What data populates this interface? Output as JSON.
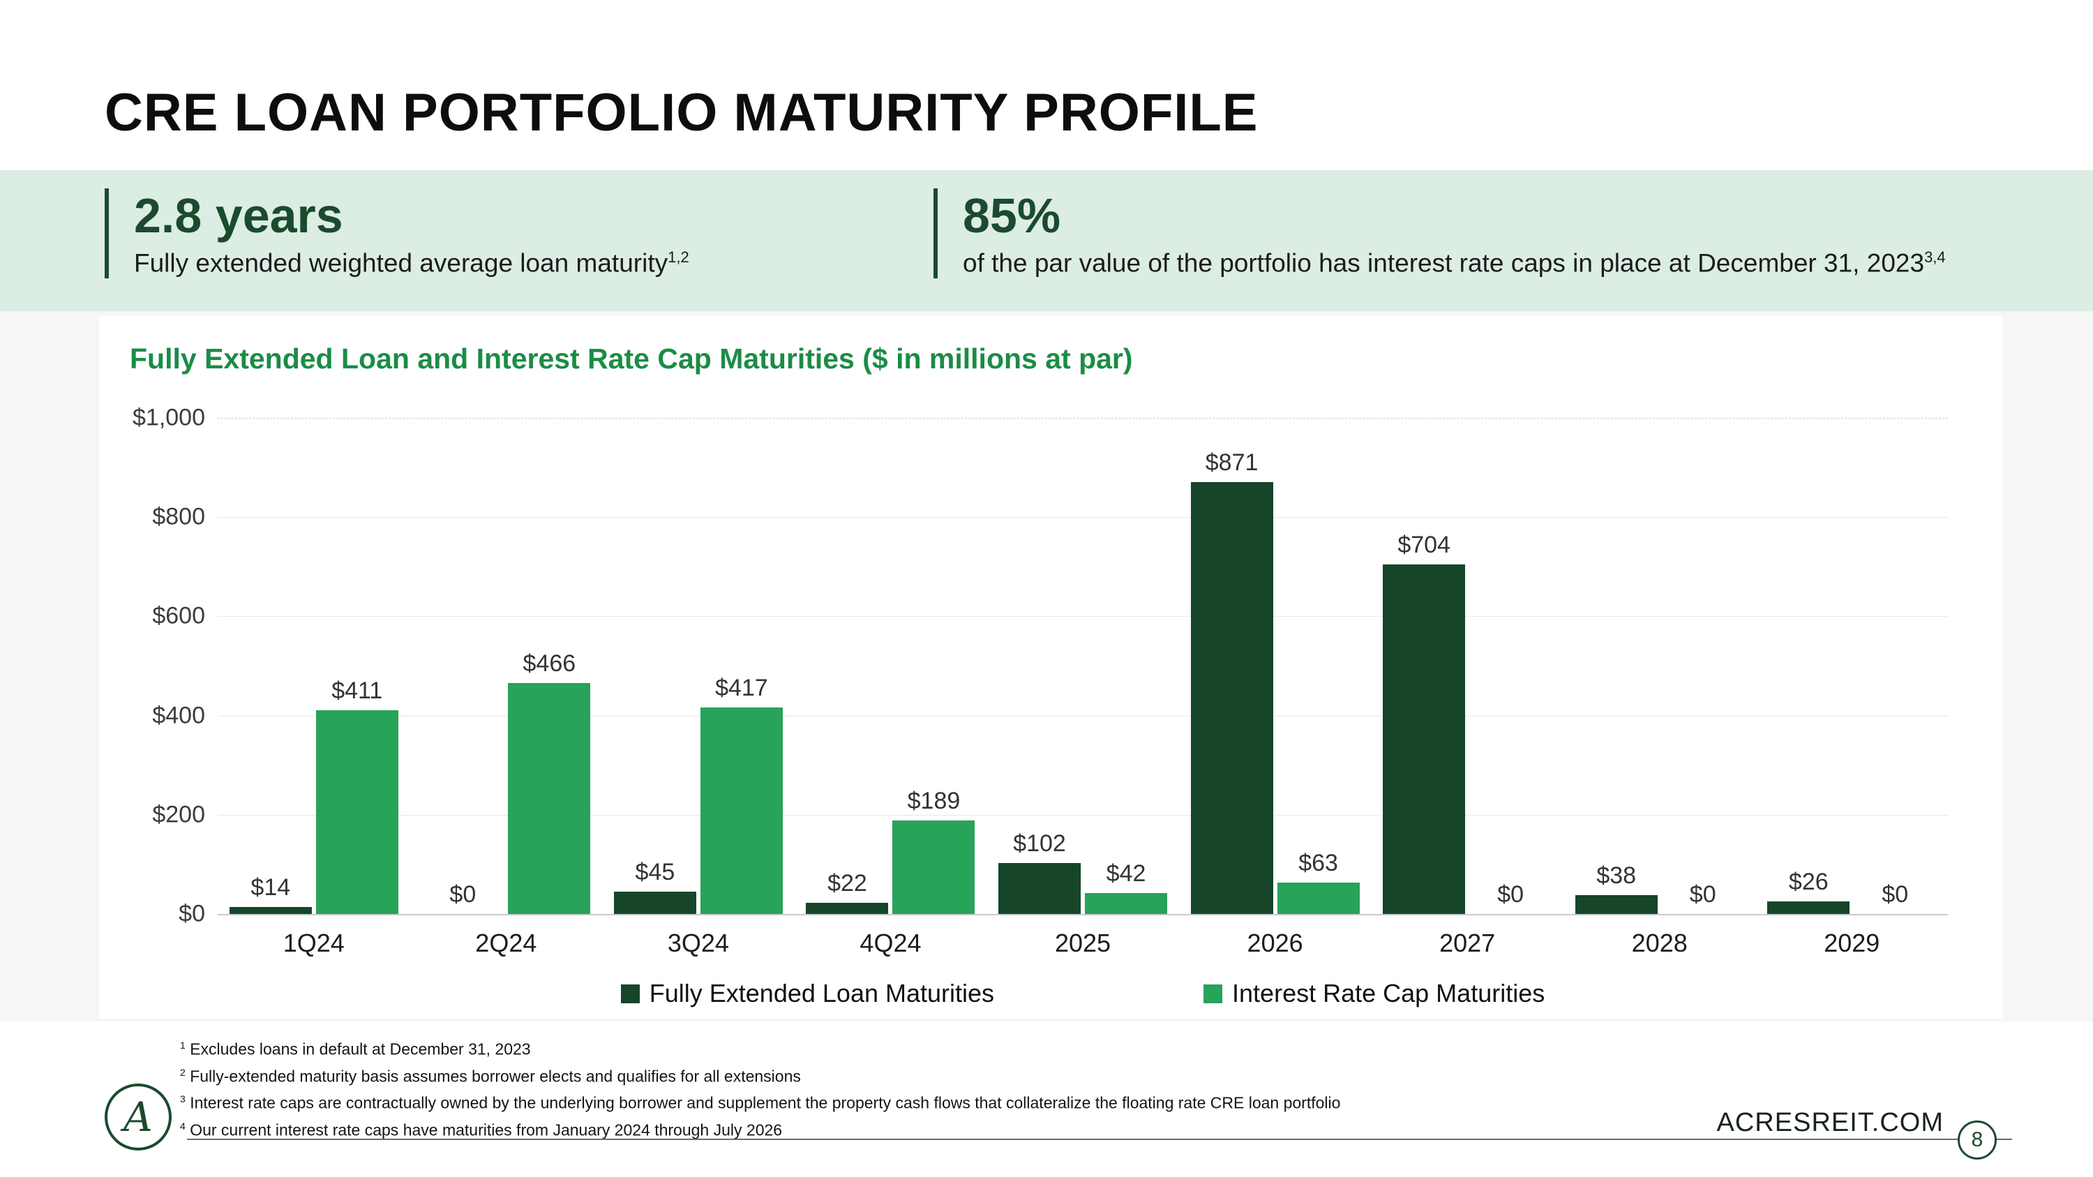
{
  "slide": {
    "title": "CRE LOAN PORTFOLIO MATURITY PROFILE"
  },
  "stats": {
    "items": [
      {
        "value": "2.8 years",
        "label": "Fully extended weighted average loan maturity",
        "sup": "1,2"
      },
      {
        "value": "85%",
        "label": "of the par value of the portfolio has interest rate caps in place at December 31, 2023",
        "sup": "3,4"
      }
    ]
  },
  "chart_data": {
    "type": "bar",
    "title": "Fully Extended Loan and Interest Rate Cap Maturities ($ in millions at par)",
    "categories": [
      "1Q24",
      "2Q24",
      "3Q24",
      "4Q24",
      "2025",
      "2026",
      "2027",
      "2028",
      "2029"
    ],
    "series": [
      {
        "name": "Fully Extended Loan Maturities",
        "color": "#16452a",
        "values": [
          14,
          0,
          45,
          22,
          102,
          871,
          704,
          38,
          26
        ]
      },
      {
        "name": "Interest Rate Cap Maturities",
        "color": "#27a35a",
        "values": [
          411,
          466,
          417,
          189,
          42,
          63,
          0,
          0,
          0
        ]
      }
    ],
    "data_label_prefix": "$",
    "y_ticks": [
      0,
      200,
      400,
      600,
      800,
      1000
    ],
    "y_tick_labels": [
      "$0",
      "$200",
      "$400",
      "$600",
      "$800",
      "$1,000"
    ],
    "ylim": [
      0,
      1000
    ],
    "grid": true,
    "legend_position": "bottom"
  },
  "footnotes": [
    {
      "sup": "1",
      "text": "Excludes loans in default at December 31, 2023"
    },
    {
      "sup": "2",
      "text": "Fully-extended maturity basis assumes borrower elects and qualifies for all extensions"
    },
    {
      "sup": "3",
      "text": "Interest rate caps are contractually owned by the underlying borrower and supplement the property cash flows that collateralize the floating rate CRE loan portfolio"
    },
    {
      "sup": "4",
      "text": "Our current interest rate caps have maturities from January 2024 through July 2026"
    }
  ],
  "footer": {
    "website": "ACRESREIT.COM",
    "page_number": "8",
    "logo_letter": "A"
  },
  "colors": {
    "banner_bg": "#dcede3",
    "dark_green": "#1b4a2e",
    "medium_green": "#27a35a",
    "chart_title_green": "#1b8c45"
  }
}
